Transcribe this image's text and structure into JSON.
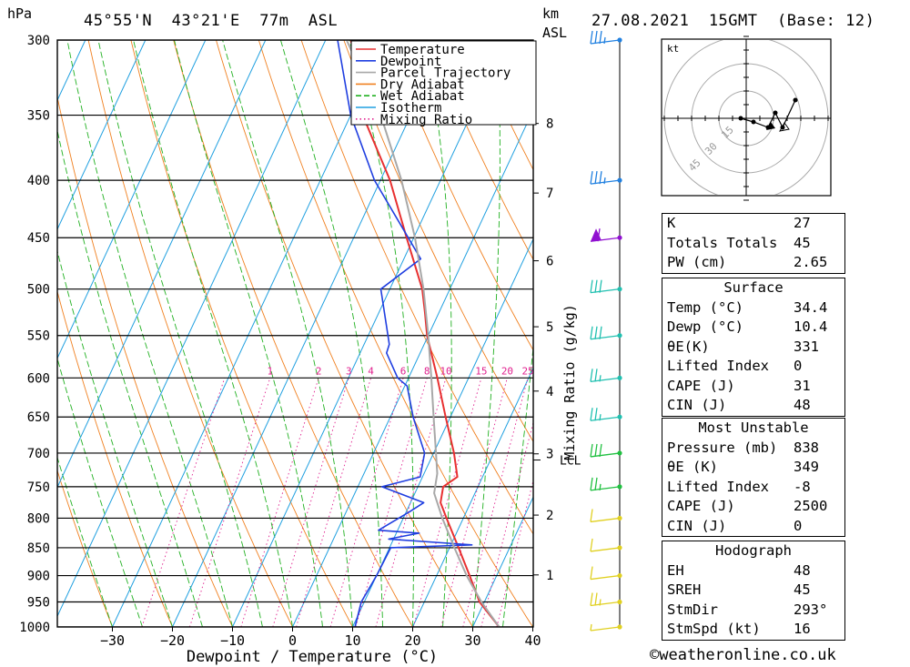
{
  "header": {
    "p_unit": "hPa",
    "location": "45°55'N  43°21'E  77m  ASL",
    "km_unit": "km",
    "asl_unit": "ASL",
    "datetime": "27.08.2021  15GMT  (Base: 12)"
  },
  "chart_data": {
    "type": "skew-t",
    "xlabel": "Dewpoint / Temperature (°C)",
    "ylabel": "hPa",
    "right_label": "Mixing Ratio (g/kg)",
    "pressure_levels": [
      300,
      350,
      400,
      450,
      500,
      550,
      600,
      650,
      700,
      750,
      800,
      850,
      900,
      950,
      1000
    ],
    "temp_ticks": [
      -30,
      -20,
      -10,
      0,
      10,
      20,
      30,
      40
    ],
    "km_ticks": [
      1,
      2,
      3,
      4,
      5,
      6,
      7,
      8
    ],
    "mixing_ratio_labels": [
      "1",
      "2",
      "3",
      "4",
      "6",
      "8",
      "10",
      "15",
      "20",
      "25"
    ],
    "lcl_label": "LCL",
    "legend": [
      "Temperature",
      "Dewpoint",
      "Parcel Trajectory",
      "Dry Adiabat",
      "Wet Adiabat",
      "Isotherm",
      "Mixing Ratio"
    ],
    "colors": {
      "temperature": "#e83030",
      "dewpoint": "#1f3ee0",
      "parcel": "#a8a8a8",
      "dry_adiabat": "#f08020",
      "wet_adiabat": "#20b020",
      "isotherm": "#20a0e0",
      "mixing_ratio": "#e0208e"
    },
    "series": [
      {
        "name": "Temperature",
        "points": [
          [
            1000,
            34.4
          ],
          [
            950,
            29.2
          ],
          [
            900,
            25.5
          ],
          [
            850,
            21.5
          ],
          [
            800,
            17.2
          ],
          [
            775,
            15.0
          ],
          [
            750,
            14.2
          ],
          [
            735,
            15.8
          ],
          [
            700,
            13.4
          ],
          [
            650,
            9.2
          ],
          [
            600,
            4.8
          ],
          [
            550,
            -0.2
          ],
          [
            525,
            -2.3
          ],
          [
            500,
            -4.6
          ],
          [
            450,
            -11.2
          ],
          [
            400,
            -18.4
          ],
          [
            350,
            -28.0
          ],
          [
            340,
            -28.8
          ],
          [
            300,
            -35.8
          ]
        ]
      },
      {
        "name": "Dewpoint",
        "points": [
          [
            1000,
            10.4
          ],
          [
            950,
            9.5
          ],
          [
            900,
            10.0
          ],
          [
            850,
            10.2
          ],
          [
            845,
            23.5
          ],
          [
            835,
            9.2
          ],
          [
            825,
            13.8
          ],
          [
            820,
            6.8
          ],
          [
            790,
            10.5
          ],
          [
            775,
            12.2
          ],
          [
            750,
            4.0
          ],
          [
            735,
            9.6
          ],
          [
            700,
            8.5
          ],
          [
            650,
            3.8
          ],
          [
            610,
            0.4
          ],
          [
            600,
            -1.8
          ],
          [
            570,
            -5.6
          ],
          [
            560,
            -5.8
          ],
          [
            500,
            -11.5
          ],
          [
            470,
            -7.2
          ],
          [
            400,
            -21.0
          ],
          [
            350,
            -30.0
          ],
          [
            300,
            -38.0
          ]
        ]
      },
      {
        "name": "Parcel Trajectory",
        "points": [
          [
            1000,
            34.4
          ],
          [
            950,
            29.5
          ],
          [
            900,
            25.0
          ],
          [
            850,
            20.8
          ],
          [
            800,
            16.5
          ],
          [
            760,
            13.2
          ],
          [
            730,
            12.2
          ],
          [
            700,
            10.4
          ],
          [
            650,
            7.2
          ],
          [
            600,
            3.8
          ],
          [
            550,
            0.0
          ],
          [
            500,
            -4.4
          ],
          [
            450,
            -9.8
          ],
          [
            400,
            -16.5
          ],
          [
            350,
            -25.0
          ],
          [
            300,
            -36.5
          ]
        ]
      }
    ],
    "wind_barbs": [
      {
        "p": 1000,
        "speed": 5
      },
      {
        "p": 950,
        "speed": 25
      },
      {
        "p": 900,
        "speed": 10
      },
      {
        "p": 850,
        "speed": 10
      },
      {
        "p": 800,
        "speed": 10
      },
      {
        "p": 750,
        "speed": 25
      },
      {
        "p": 700,
        "speed": 30
      },
      {
        "p": 650,
        "speed": 25
      },
      {
        "p": 600,
        "speed": 25
      },
      {
        "p": 550,
        "speed": 30
      },
      {
        "p": 500,
        "speed": 30
      },
      {
        "p": 450,
        "speed": 60
      },
      {
        "p": 400,
        "speed": 35
      },
      {
        "p": 300,
        "speed": 35
      }
    ],
    "hodograph": {
      "unit_label": "kt",
      "ring_labels": [
        "15",
        "30",
        "45"
      ],
      "points": [
        [
          -3,
          0
        ],
        [
          4,
          -2
        ],
        [
          12,
          -5
        ],
        [
          16,
          3
        ],
        [
          20,
          -5
        ],
        [
          27,
          10
        ]
      ]
    }
  },
  "indices": [
    {
      "label": "K",
      "value": "27"
    },
    {
      "label": "Totals Totals",
      "value": "45"
    },
    {
      "label": "PW (cm)",
      "value": "2.65"
    }
  ],
  "surface": {
    "title": "Surface",
    "rows": [
      {
        "label": "Temp (°C)",
        "value": "34.4"
      },
      {
        "label": "Dewp (°C)",
        "value": "10.4"
      },
      {
        "label": "θE(K)",
        "value": "331"
      },
      {
        "label": "Lifted Index",
        "value": "0"
      },
      {
        "label": "CAPE (J)",
        "value": "31"
      },
      {
        "label": "CIN (J)",
        "value": "48"
      }
    ]
  },
  "most_unstable": {
    "title": "Most Unstable",
    "rows": [
      {
        "label": "Pressure (mb)",
        "value": "838"
      },
      {
        "label": "θE (K)",
        "value": "349"
      },
      {
        "label": "Lifted Index",
        "value": "-8"
      },
      {
        "label": "CAPE (J)",
        "value": "2500"
      },
      {
        "label": "CIN (J)",
        "value": "0"
      }
    ]
  },
  "hodograph_box": {
    "title": "Hodograph",
    "rows": [
      {
        "label": "EH",
        "value": "48"
      },
      {
        "label": "SREH",
        "value": "45"
      },
      {
        "label": "StmDir",
        "value": "293°"
      },
      {
        "label": "StmSpd (kt)",
        "value": "16"
      }
    ]
  },
  "footer": "©weatheronline.co.uk"
}
